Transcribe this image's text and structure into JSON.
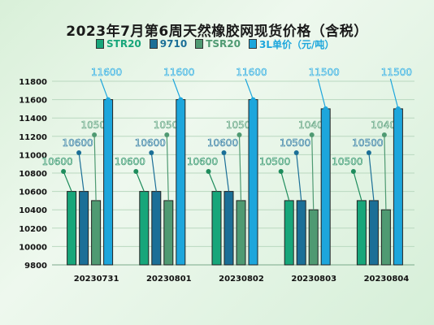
{
  "chart_data": {
    "type": "bar",
    "title": "2023年7月第6周天然橡胶网现货价格（含税）",
    "categories": [
      "20230731",
      "20230801",
      "20230802",
      "20230803",
      "20230804"
    ],
    "series": [
      {
        "name": "STR20",
        "color": "#17a67a",
        "values": [
          10600,
          10600,
          10600,
          10500,
          10500
        ]
      },
      {
        "name": "9710",
        "color": "#1b6f97",
        "values": [
          10600,
          10600,
          10600,
          10500,
          10500
        ]
      },
      {
        "name": "TSR20",
        "color": "#4f9a72",
        "values": [
          10500,
          10500,
          10500,
          10400,
          10400
        ]
      },
      {
        "name": "3L单价（元/吨）",
        "color": "#1da6dc",
        "values": [
          11600,
          11600,
          11600,
          11500,
          11500
        ]
      }
    ],
    "ylim": [
      9800,
      11800
    ],
    "yticks": [
      9800,
      10000,
      10200,
      10400,
      10600,
      10800,
      11000,
      11200,
      11400,
      11600,
      11800
    ],
    "grid": true,
    "legend": "top"
  }
}
